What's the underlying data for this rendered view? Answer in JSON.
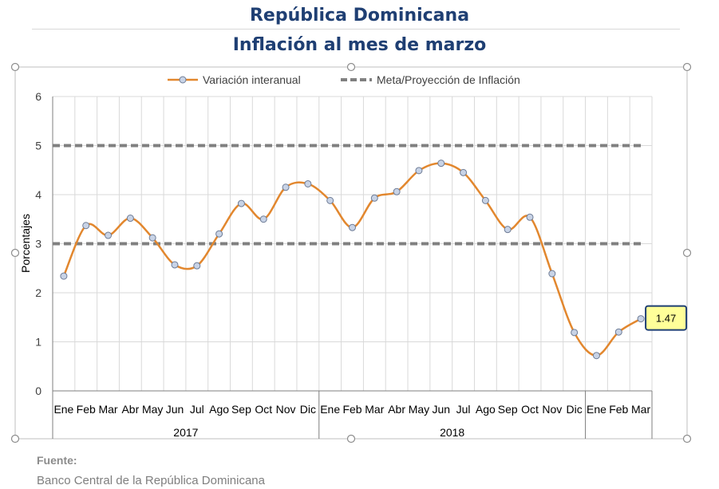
{
  "header": {
    "title": "República Dominicana",
    "subtitle": "Inflación al mes de marzo"
  },
  "footer": {
    "source_label": "Fuente:",
    "source_text": "Banco Central de la República Dominicana"
  },
  "chart_data": {
    "type": "line",
    "ylabel": "Porcentajes",
    "ylim": [
      0,
      6
    ],
    "yticks": [
      0,
      1,
      2,
      3,
      4,
      5,
      6
    ],
    "grid": true,
    "legend_position": "top",
    "categories": [
      "Ene",
      "Feb",
      "Mar",
      "Abr",
      "May",
      "Jun",
      "Jul",
      "Ago",
      "Sep",
      "Oct",
      "Nov",
      "Dic",
      "Ene",
      "Feb",
      "Mar",
      "Abr",
      "May",
      "Jun",
      "Jul",
      "Ago",
      "Sep",
      "Oct",
      "Nov",
      "Dic",
      "Ene",
      "Feb",
      "Mar"
    ],
    "groups": [
      {
        "label": "2017",
        "count": 12
      },
      {
        "label": "2018",
        "count": 12
      },
      {
        "label": "",
        "count": 3
      }
    ],
    "series": [
      {
        "name": "Variación interanual",
        "color": "#e2872e",
        "values": [
          2.34,
          3.37,
          3.17,
          3.52,
          3.12,
          2.57,
          2.55,
          3.2,
          3.82,
          3.5,
          4.15,
          4.22,
          3.88,
          3.33,
          3.93,
          4.06,
          4.49,
          4.64,
          4.45,
          3.88,
          3.29,
          3.54,
          2.39,
          1.19,
          0.72,
          1.2,
          1.47
        ]
      },
      {
        "name": "Meta/Proyección de Inflación",
        "color": "#808080",
        "dashed": true,
        "bands": [
          3,
          5
        ]
      }
    ],
    "callout": {
      "value": "1.47",
      "bg": "#ffff99",
      "border": "#1f3f73"
    }
  }
}
